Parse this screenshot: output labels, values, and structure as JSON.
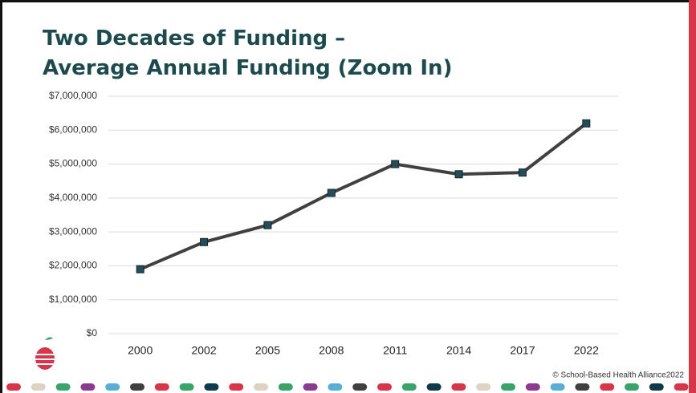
{
  "chart_data": {
    "type": "line",
    "title": [
      "Two Decades of Funding –",
      "Average Annual Funding (Zoom In)"
    ],
    "categories": [
      "2000",
      "2002",
      "2005",
      "2008",
      "2011",
      "2014",
      "2017",
      "2022"
    ],
    "values": [
      1900000,
      2700000,
      3200000,
      4150000,
      5000000,
      4700000,
      4750000,
      6200000
    ],
    "color": "#404040",
    "marker_color": "#1f4e5f",
    "ylim": [
      0,
      7000000
    ],
    "yticks": [
      {
        "value": 0,
        "label": "$0"
      },
      {
        "value": 1000000,
        "label": "$1,000,000"
      },
      {
        "value": 2000000,
        "label": "$2,000,000"
      },
      {
        "value": 3000000,
        "label": "$3,000,000"
      },
      {
        "value": 4000000,
        "label": "$4,000,000"
      },
      {
        "value": 5000000,
        "label": "$5,000,000"
      },
      {
        "value": 6000000,
        "label": "$6,000,000"
      },
      {
        "value": 7000000,
        "label": "$7,000,000"
      }
    ],
    "grid": true
  },
  "footer": {
    "copyright": "© School-Based Health Alliance2022"
  }
}
